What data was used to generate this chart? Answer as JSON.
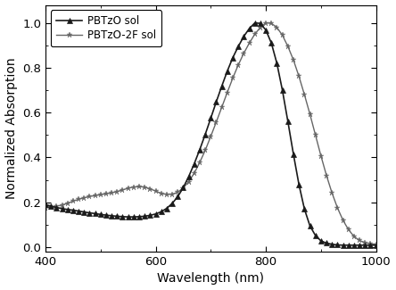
{
  "title": "",
  "xlabel": "Wavelength (nm)",
  "ylabel": "Normalized Absorption",
  "xlim": [
    400,
    1000
  ],
  "ylim": [
    -0.02,
    1.08
  ],
  "xticks": [
    400,
    600,
    800,
    1000
  ],
  "yticks": [
    0.0,
    0.2,
    0.4,
    0.6,
    0.8,
    1.0
  ],
  "series1_label": "PBTzO sol",
  "series2_label": "PBTzO-2F sol",
  "series1_color": "#1a1a1a",
  "series2_color": "#666666",
  "background": "#ffffff",
  "series1_x": [
    400,
    410,
    420,
    430,
    440,
    450,
    460,
    470,
    480,
    490,
    500,
    510,
    520,
    530,
    540,
    550,
    560,
    570,
    580,
    590,
    600,
    610,
    620,
    630,
    640,
    650,
    660,
    670,
    680,
    690,
    700,
    710,
    720,
    730,
    740,
    750,
    760,
    770,
    780,
    790,
    800,
    810,
    820,
    830,
    840,
    850,
    860,
    870,
    880,
    890,
    900,
    910,
    920,
    930,
    940,
    950,
    960,
    970,
    980,
    990,
    1000
  ],
  "series1_y": [
    0.19,
    0.183,
    0.177,
    0.172,
    0.168,
    0.165,
    0.161,
    0.157,
    0.153,
    0.15,
    0.146,
    0.143,
    0.14,
    0.138,
    0.136,
    0.135,
    0.135,
    0.136,
    0.138,
    0.142,
    0.148,
    0.158,
    0.173,
    0.195,
    0.225,
    0.265,
    0.315,
    0.372,
    0.435,
    0.503,
    0.575,
    0.648,
    0.718,
    0.785,
    0.845,
    0.895,
    0.94,
    0.975,
    1.0,
    0.998,
    0.968,
    0.91,
    0.82,
    0.7,
    0.56,
    0.415,
    0.28,
    0.17,
    0.095,
    0.052,
    0.028,
    0.018,
    0.013,
    0.01,
    0.009,
    0.009,
    0.009,
    0.009,
    0.009,
    0.009,
    0.009
  ],
  "series2_x": [
    400,
    410,
    420,
    430,
    440,
    450,
    460,
    470,
    480,
    490,
    500,
    510,
    520,
    530,
    540,
    550,
    560,
    570,
    580,
    590,
    600,
    610,
    620,
    630,
    640,
    650,
    660,
    670,
    680,
    690,
    700,
    710,
    720,
    730,
    740,
    750,
    760,
    770,
    780,
    790,
    800,
    810,
    820,
    830,
    840,
    850,
    860,
    870,
    880,
    890,
    900,
    910,
    920,
    930,
    940,
    950,
    960,
    970,
    980,
    990,
    1000
  ],
  "series2_y": [
    0.175,
    0.178,
    0.182,
    0.188,
    0.196,
    0.205,
    0.213,
    0.22,
    0.226,
    0.23,
    0.234,
    0.238,
    0.242,
    0.248,
    0.255,
    0.263,
    0.268,
    0.27,
    0.268,
    0.26,
    0.25,
    0.24,
    0.235,
    0.236,
    0.245,
    0.264,
    0.292,
    0.33,
    0.378,
    0.432,
    0.494,
    0.558,
    0.624,
    0.69,
    0.754,
    0.813,
    0.865,
    0.91,
    0.95,
    0.98,
    1.0,
    0.998,
    0.98,
    0.945,
    0.895,
    0.835,
    0.762,
    0.68,
    0.593,
    0.5,
    0.407,
    0.32,
    0.242,
    0.175,
    0.12,
    0.078,
    0.048,
    0.03,
    0.02,
    0.015,
    0.013
  ]
}
